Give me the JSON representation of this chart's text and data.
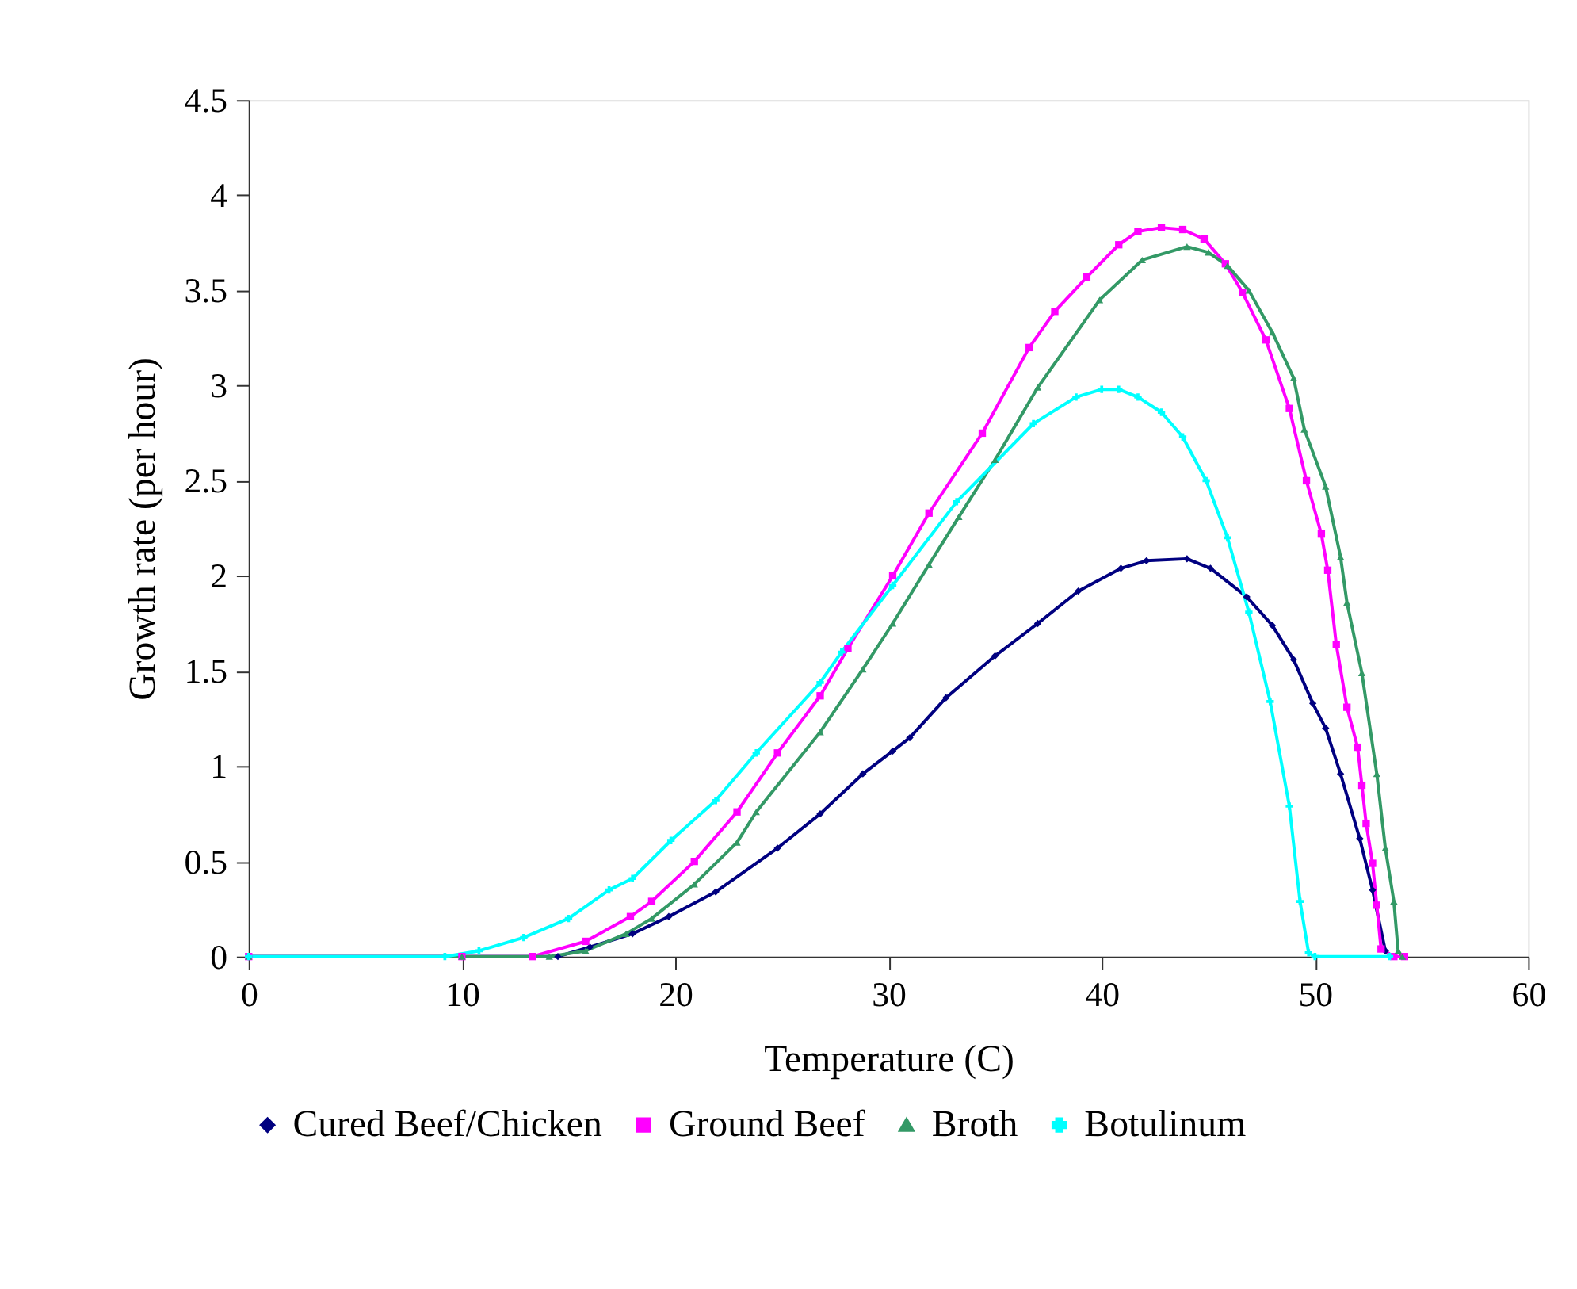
{
  "chart_data": {
    "type": "line",
    "xlabel": "Temperature (C)",
    "ylabel": "Growth rate (per hour)",
    "xlim": [
      0,
      60
    ],
    "xticks": [
      0,
      10,
      20,
      30,
      40,
      50,
      60
    ],
    "ylim": [
      0,
      4.5
    ],
    "yticks": [
      0,
      0.5,
      1,
      1.5,
      2,
      2.5,
      3,
      3.5,
      4,
      4.5
    ],
    "grid": false,
    "legend": "bottom",
    "line_style": "solid",
    "series": [
      {
        "name": "Cured Beef/Chicken",
        "color": "#000080",
        "marker": "diamond",
        "x": [
          0,
          10,
          14.5,
          16.0,
          18.0,
          19.7,
          21.9,
          24.8,
          26.8,
          28.8,
          30.2,
          31.0,
          32.7,
          35.0,
          37.0,
          38.9,
          40.9,
          42.1,
          44.0,
          45.1,
          46.8,
          48.0,
          49.0,
          49.9,
          50.5,
          51.2,
          52.1,
          52.7,
          53.3,
          53.6
        ],
        "values": [
          0,
          0,
          0,
          0.05,
          0.12,
          0.21,
          0.34,
          0.57,
          0.75,
          0.96,
          1.08,
          1.15,
          1.36,
          1.58,
          1.75,
          1.92,
          2.04,
          2.08,
          2.09,
          2.04,
          1.89,
          1.74,
          1.56,
          1.33,
          1.2,
          0.96,
          0.62,
          0.35,
          0.03,
          0
        ]
      },
      {
        "name": "Ground Beef",
        "color": "#ff00ff",
        "marker": "square",
        "x": [
          0,
          10,
          13.3,
          15.8,
          17.9,
          18.9,
          20.9,
          22.9,
          24.8,
          26.8,
          28.1,
          30.2,
          31.9,
          34.4,
          36.6,
          37.8,
          39.3,
          40.8,
          41.7,
          42.8,
          43.8,
          44.8,
          45.8,
          46.6,
          47.7,
          48.8,
          49.6,
          50.3,
          50.6,
          51.0,
          51.5,
          52.0,
          52.2,
          52.4,
          52.7,
          52.9,
          53.1,
          53.7,
          54.2
        ],
        "values": [
          0,
          0,
          0,
          0.08,
          0.21,
          0.29,
          0.5,
          0.76,
          1.07,
          1.37,
          1.62,
          2.0,
          2.33,
          2.75,
          3.2,
          3.39,
          3.57,
          3.74,
          3.81,
          3.83,
          3.82,
          3.77,
          3.64,
          3.49,
          3.24,
          2.88,
          2.5,
          2.22,
          2.03,
          1.64,
          1.31,
          1.1,
          0.9,
          0.7,
          0.49,
          0.27,
          0.04,
          0,
          0
        ]
      },
      {
        "name": "Broth",
        "color": "#339966",
        "marker": "triangle",
        "x": [
          0,
          10,
          14.1,
          15.8,
          17.7,
          18.9,
          20.9,
          22.9,
          23.8,
          26.8,
          28.8,
          30.2,
          31.9,
          33.3,
          35.0,
          37.0,
          39.9,
          41.9,
          44.0,
          45.0,
          45.9,
          46.9,
          48.0,
          49.0,
          49.5,
          50.5,
          51.2,
          51.5,
          52.2,
          52.9,
          53.3,
          53.7,
          53.9,
          54.1
        ],
        "values": [
          0,
          0,
          0,
          0.03,
          0.12,
          0.2,
          0.38,
          0.6,
          0.76,
          1.18,
          1.51,
          1.75,
          2.06,
          2.31,
          2.61,
          2.99,
          3.45,
          3.66,
          3.73,
          3.7,
          3.63,
          3.5,
          3.28,
          3.04,
          2.77,
          2.47,
          2.1,
          1.86,
          1.49,
          0.96,
          0.57,
          0.29,
          0.03,
          0
        ]
      },
      {
        "name": "Botulinum",
        "color": "#00ffff",
        "marker": "cross",
        "x": [
          0,
          9.2,
          10.8,
          12.9,
          15.0,
          16.9,
          18.0,
          19.8,
          21.9,
          23.8,
          26.8,
          27.8,
          30.2,
          33.2,
          36.8,
          38.8,
          40.0,
          40.8,
          41.7,
          42.8,
          43.8,
          44.9,
          45.9,
          46.9,
          47.9,
          48.8,
          49.3,
          49.7,
          50.0,
          53.5
        ],
        "values": [
          0,
          0,
          0.03,
          0.1,
          0.2,
          0.35,
          0.41,
          0.61,
          0.82,
          1.07,
          1.44,
          1.6,
          1.95,
          2.39,
          2.8,
          2.94,
          2.98,
          2.98,
          2.94,
          2.86,
          2.73,
          2.5,
          2.2,
          1.81,
          1.34,
          0.79,
          0.29,
          0.02,
          0,
          0
        ]
      }
    ]
  }
}
